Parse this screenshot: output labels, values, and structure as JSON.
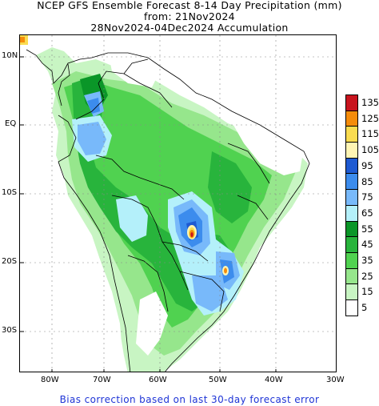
{
  "header": {
    "line1": "NCEP GFS Ensemble Forecast 8-14 Day Precipitation (mm)",
    "line2": "from: 21Nov2024",
    "line3": "28Nov2024-04Dec2024 Accumulation"
  },
  "axes": {
    "lat_labels": [
      "10N",
      "EQ",
      "10S",
      "20S",
      "30S"
    ],
    "lon_labels": [
      "80W",
      "70W",
      "60W",
      "50W",
      "40W",
      "30W"
    ]
  },
  "legend": {
    "labels": [
      "135",
      "125",
      "115",
      "105",
      "95",
      "85",
      "75",
      "65",
      "55",
      "45",
      "35",
      "25",
      "15",
      "5"
    ],
    "colors": [
      "#c8141e",
      "#f58c0a",
      "#fadc50",
      "#fff5b4",
      "#1e5ad2",
      "#3c8ced",
      "#78b9fa",
      "#b4f0fa",
      "#0a9628",
      "#28b43c",
      "#50d250",
      "#96e68c",
      "#c8f5c3",
      "#ffffff"
    ]
  },
  "footer": {
    "note": "Bias correction based on last 30-day forecast error"
  }
}
